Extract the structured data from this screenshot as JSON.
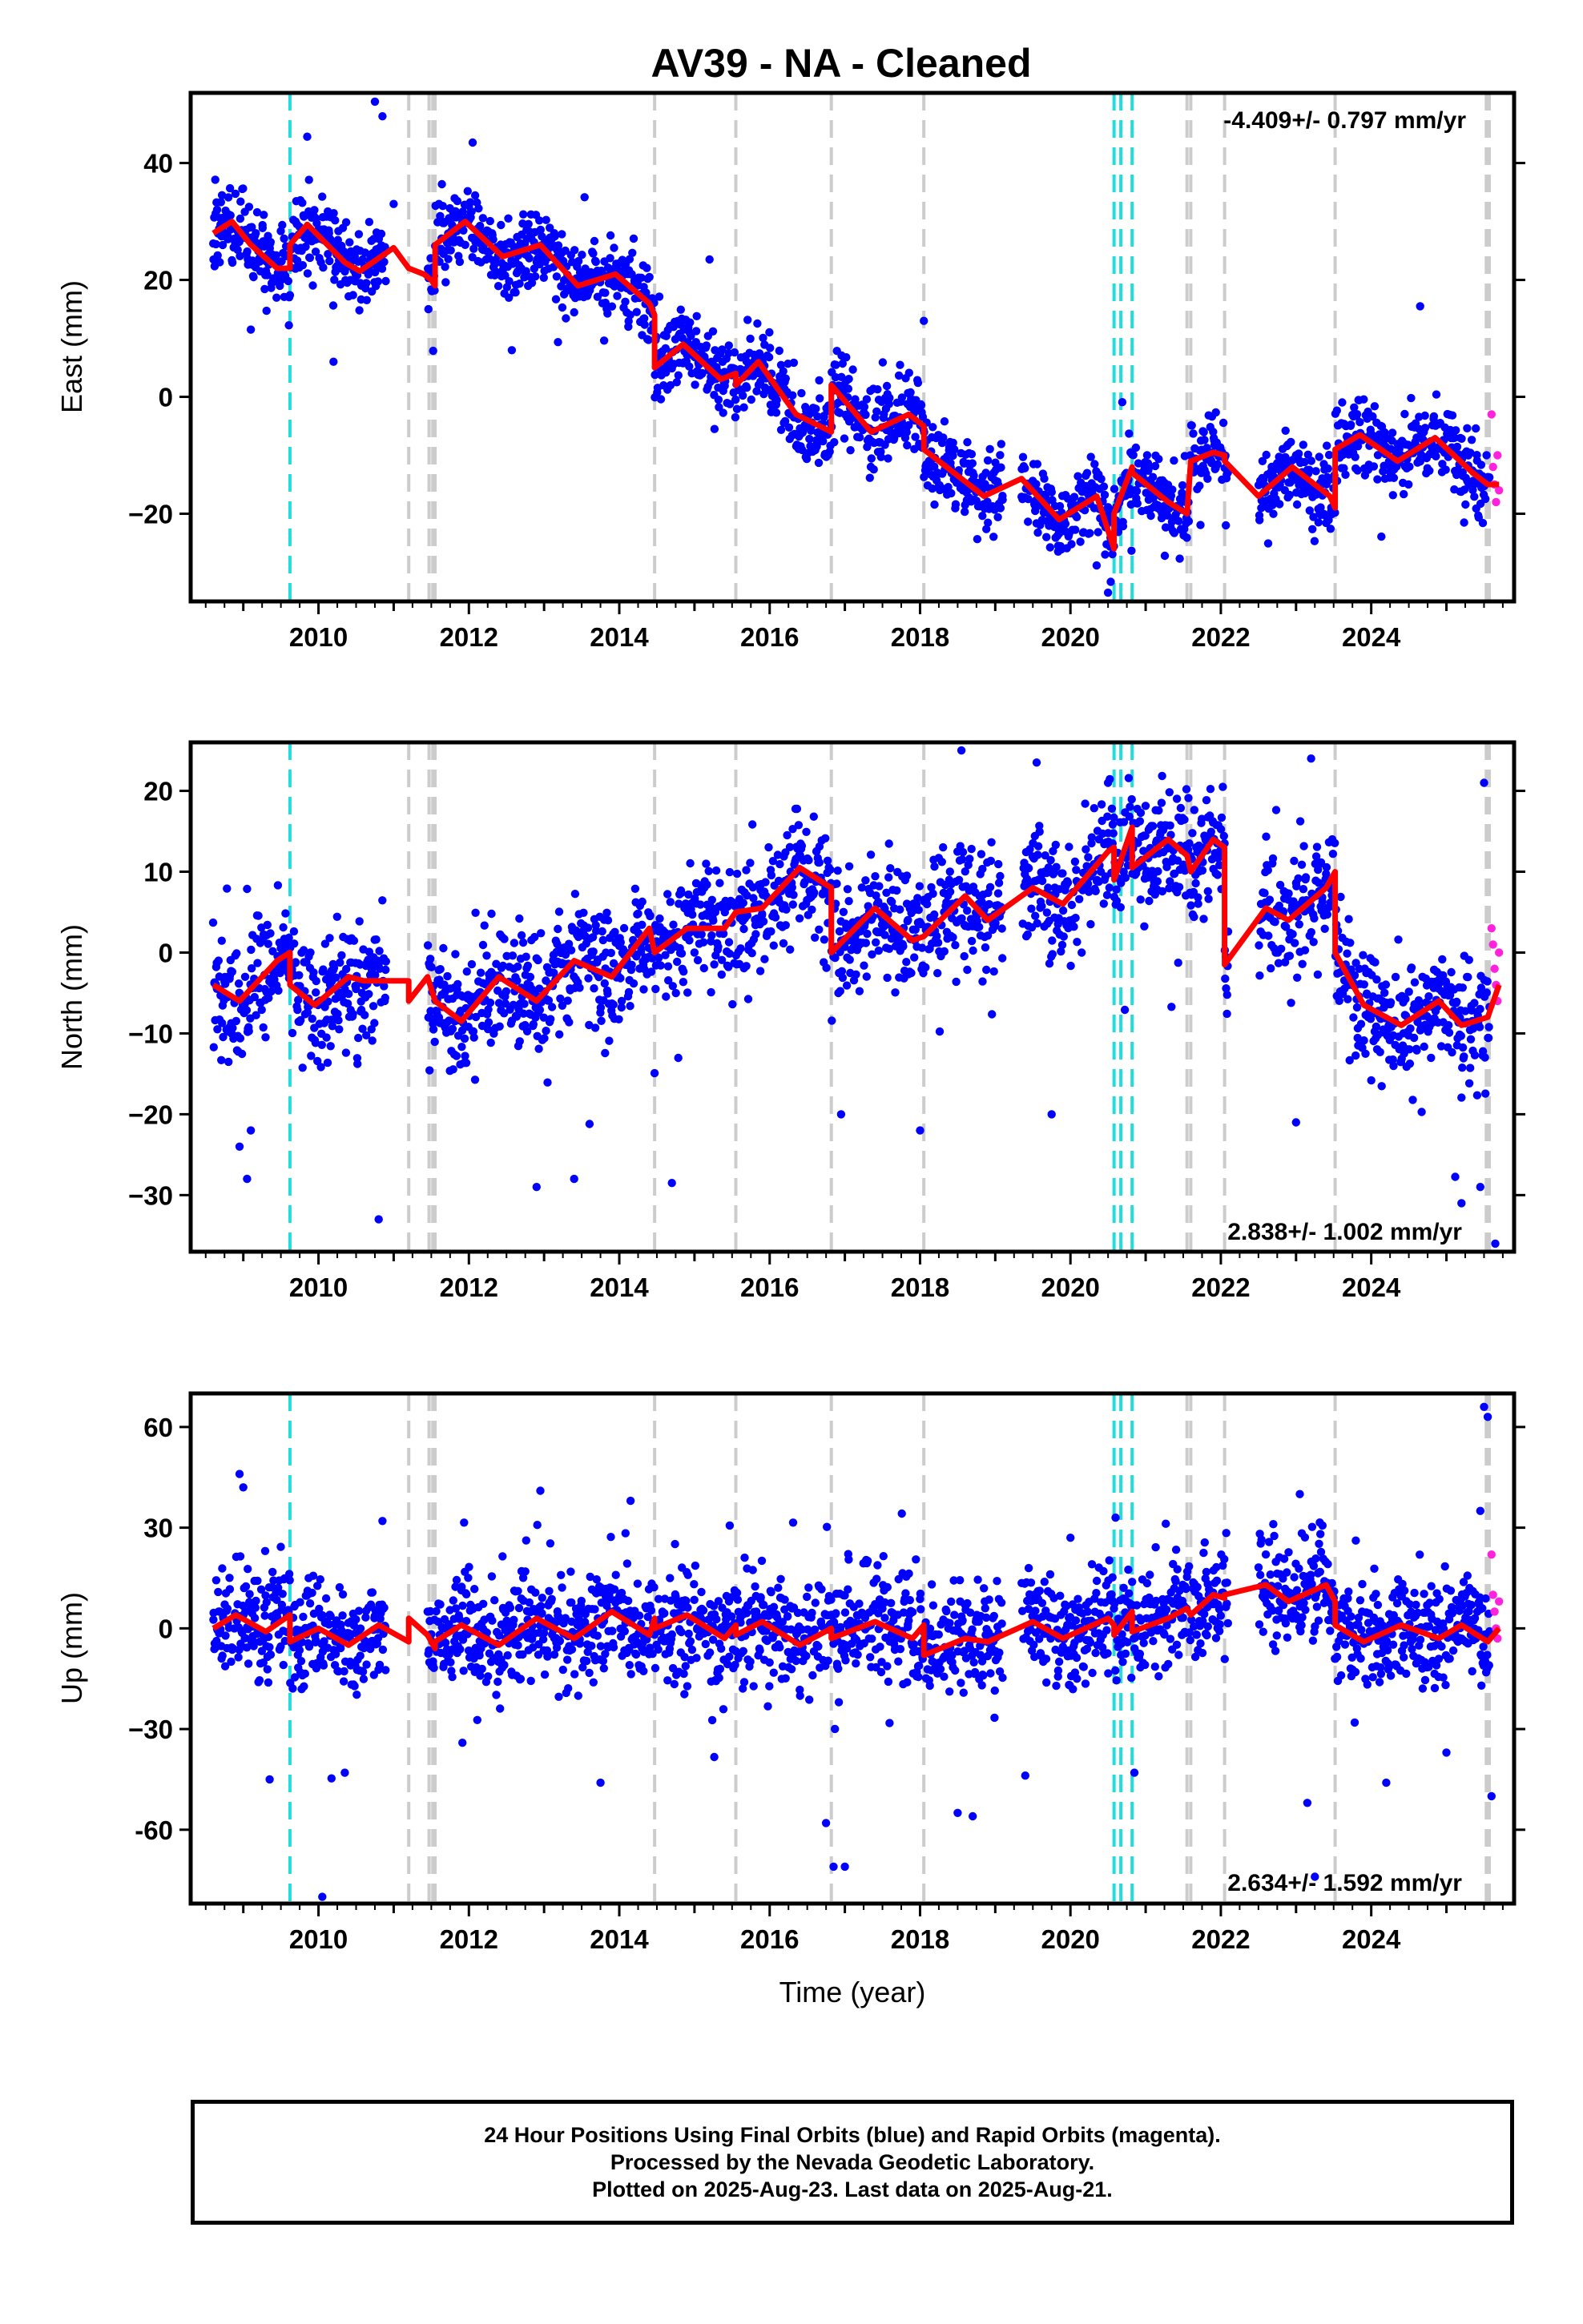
{
  "title": "AV39  - NA - Cleaned",
  "colors": {
    "final": "#0000ff",
    "rapid": "#ff22dd",
    "model": "#ff0000",
    "antenna_line": "#22dddd",
    "event_line": "#cccccc",
    "frame": "#000000"
  },
  "x_axis": {
    "label": "Time (year)",
    "range": [
      2008.3,
      2025.9
    ],
    "ticks": [
      2010,
      2012,
      2014,
      2016,
      2018,
      2020,
      2022,
      2024
    ],
    "tick_labels": [
      "2010",
      "2012",
      "2014",
      "2016",
      "2018",
      "2020",
      "2022",
      "2024"
    ],
    "minor_step": 0.25
  },
  "vertical_lines": {
    "antenna": [
      2009.62,
      2020.58,
      2020.67,
      2020.82
    ],
    "event": [
      2011.2,
      2011.47,
      2011.52,
      2011.55,
      2014.47,
      2015.55,
      2016.82,
      2018.05,
      2021.55,
      2021.6,
      2022.05,
      2023.52,
      2025.53,
      2025.57
    ]
  },
  "chart_data": [
    {
      "type": "scatter",
      "ylabel": "East (mm)",
      "ylim": [
        -35,
        52
      ],
      "yticks": [
        -20,
        0,
        20,
        40
      ],
      "ytick_labels": [
        "−20",
        "0",
        "20",
        "40"
      ],
      "rate_text": "-4.409+/- 0.797 mm/yr",
      "rate_position": "top-right",
      "series": [
        {
          "name": "Final Orbits",
          "style": "points",
          "noise": 3.2,
          "gaps": [
            [
              2010.9,
              2011.45
            ],
            [
              2019.1,
              2019.35
            ],
            [
              2022.1,
              2022.5
            ]
          ],
          "outliers": [
            [
              2009.85,
              44.5
            ],
            [
              2010.75,
              50.5
            ],
            [
              2010.85,
              48
            ],
            [
              2011.0,
              33
            ],
            [
              2012.05,
              43.5
            ],
            [
              2024.65,
              15.5
            ],
            [
              2020.5,
              -33.5
            ],
            [
              2018.05,
              13
            ],
            [
              2015.2,
              23.5
            ],
            [
              2009.1,
              11.5
            ],
            [
              2010.2,
              6
            ]
          ]
        },
        {
          "name": "Rapid Orbits",
          "style": "points",
          "x": [
            2025.6,
            2025.62,
            2025.64,
            2025.66,
            2025.68,
            2025.7
          ],
          "y": [
            -3,
            -12,
            -15,
            -18,
            -10,
            -16
          ]
        },
        {
          "name": "Model",
          "style": "line",
          "x": [
            2008.6,
            2008.85,
            2009.1,
            2009.45,
            2009.62,
            2009.62,
            2009.85,
            2010.35,
            2010.55,
            2011.0,
            2011.2,
            2011.2,
            2011.4,
            2011.5,
            2011.55,
            2011.55,
            2011.95,
            2012.45,
            2012.95,
            2013.45,
            2013.95,
            2014.4,
            2014.47,
            2014.47,
            2014.85,
            2015.35,
            2015.55,
            2015.55,
            2015.85,
            2016.35,
            2016.82,
            2016.82,
            2017.35,
            2017.85,
            2018.05,
            2018.05,
            2018.85,
            2019.35,
            2019.85,
            2020.35,
            2020.58,
            2020.58,
            2020.82,
            2020.82,
            2021.3,
            2021.55,
            2021.6,
            2021.9,
            2022.05,
            2022.05,
            2022.5,
            2022.95,
            2023.45,
            2023.52,
            2023.52,
            2023.85,
            2024.35,
            2024.85,
            2025.35,
            2025.55,
            2025.7
          ],
          "y": [
            28,
            30,
            26,
            22,
            22,
            26,
            29.5,
            23,
            21.5,
            25.5,
            22,
            22,
            21,
            20,
            19,
            26,
            30,
            24,
            26,
            19,
            21,
            16,
            14,
            5,
            9,
            3,
            4,
            2,
            6,
            -3,
            -6,
            2,
            -6,
            -3,
            -5,
            -9,
            -17,
            -14,
            -21,
            -17,
            -26,
            -20,
            -12,
            -13,
            -18,
            -20,
            -11,
            -9.5,
            -10,
            -11,
            -17,
            -12,
            -17,
            -19,
            -9,
            -6.5,
            -11,
            -7,
            -13,
            -15,
            -15
          ]
        }
      ]
    },
    {
      "type": "scatter",
      "ylabel": "North (mm)",
      "ylim": [
        -37,
        26
      ],
      "yticks": [
        -30,
        -20,
        -10,
        0,
        10,
        20
      ],
      "ytick_labels": [
        "−30",
        "−20",
        "−10",
        "0",
        "10",
        "20"
      ],
      "rate_text": "2.838+/- 1.002 mm/yr",
      "rate_position": "bottom-right",
      "series": [
        {
          "name": "Final Orbits",
          "style": "points",
          "noise": 3.5,
          "gaps": [
            [
              2010.9,
              2011.45
            ],
            [
              2019.1,
              2019.35
            ],
            [
              2022.1,
              2022.5
            ]
          ],
          "outliers": [
            [
              2009.05,
              -28
            ],
            [
              2008.95,
              -24
            ],
            [
              2009.1,
              -22
            ],
            [
              2010.8,
              -33
            ],
            [
              2012.9,
              -29
            ],
            [
              2013.4,
              -28
            ],
            [
              2014.7,
              -28.5
            ],
            [
              2018.55,
              25
            ],
            [
              2019.55,
              23.5
            ],
            [
              2020.5,
              21
            ],
            [
              2023.2,
              24
            ],
            [
              2025.5,
              21
            ],
            [
              2025.45,
              -29
            ],
            [
              2025.2,
              -31
            ],
            [
              2025.65,
              -36
            ],
            [
              2016.95,
              -20
            ],
            [
              2018.0,
              -22
            ],
            [
              2019.75,
              -20
            ],
            [
              2023.0,
              -21
            ]
          ]
        },
        {
          "name": "Rapid Orbits",
          "style": "points",
          "x": [
            2025.6,
            2025.62,
            2025.64,
            2025.66,
            2025.68,
            2025.7
          ],
          "y": [
            3,
            1,
            -2,
            -4,
            -6,
            0
          ]
        },
        {
          "name": "Model",
          "style": "line",
          "x": [
            2008.6,
            2008.95,
            2009.45,
            2009.62,
            2009.62,
            2009.95,
            2010.4,
            2010.6,
            2011.2,
            2011.2,
            2011.45,
            2011.55,
            2011.55,
            2011.9,
            2012.4,
            2012.9,
            2013.4,
            2013.9,
            2014.4,
            2014.47,
            2014.47,
            2014.9,
            2015.4,
            2015.55,
            2015.55,
            2015.9,
            2016.4,
            2016.82,
            2016.82,
            2017.4,
            2017.9,
            2018.05,
            2018.05,
            2018.6,
            2018.9,
            2019.5,
            2019.9,
            2020.5,
            2020.58,
            2020.58,
            2020.82,
            2020.82,
            2021.3,
            2021.55,
            2021.6,
            2021.9,
            2022.05,
            2022.05,
            2022.6,
            2022.9,
            2023.4,
            2023.52,
            2023.52,
            2023.9,
            2024.4,
            2024.9,
            2025.2,
            2025.55,
            2025.7
          ],
          "y": [
            -4,
            -6,
            -1,
            0,
            -4,
            -6.5,
            -3,
            -3.5,
            -3.5,
            -6,
            -3,
            -6,
            -6,
            -8.5,
            -3,
            -6,
            -1,
            -3,
            3,
            0,
            0,
            3,
            3,
            5,
            5,
            5.5,
            10.5,
            8,
            0,
            5.5,
            1.5,
            2,
            2,
            7,
            4,
            8,
            6,
            12.5,
            13,
            9,
            15.5,
            10.5,
            14,
            12,
            10,
            14,
            13,
            -1.5,
            5.5,
            4,
            8,
            10,
            0,
            -6.5,
            -9,
            -6,
            -9,
            -8,
            -4
          ]
        }
      ]
    },
    {
      "type": "scatter",
      "ylabel": "Up (mm)",
      "ylim": [
        -82,
        70
      ],
      "yticks": [
        -60,
        -30,
        0,
        30,
        60
      ],
      "ytick_labels": [
        "-60",
        "−30",
        "0",
        "30",
        "60"
      ],
      "rate_text": "2.634+/- 1.592 mm/yr",
      "rate_position": "bottom-right",
      "series": [
        {
          "name": "Final Orbits",
          "style": "points",
          "noise": 8,
          "gaps": [
            [
              2010.9,
              2011.45
            ],
            [
              2019.1,
              2019.35
            ],
            [
              2022.1,
              2022.5
            ]
          ],
          "outliers": [
            [
              2008.95,
              46
            ],
            [
              2009.0,
              42
            ],
            [
              2009.35,
              -45
            ],
            [
              2010.05,
              -80
            ],
            [
              2010.35,
              -43
            ],
            [
              2010.85,
              32
            ],
            [
              2012.95,
              41
            ],
            [
              2013.75,
              -46
            ],
            [
              2014.15,
              38
            ],
            [
              2016.75,
              -58
            ],
            [
              2016.85,
              -71
            ],
            [
              2017.0,
              -71
            ],
            [
              2018.5,
              -55
            ],
            [
              2018.7,
              -56
            ],
            [
              2020.6,
              33
            ],
            [
              2020.85,
              -43
            ],
            [
              2023.15,
              -52
            ],
            [
              2023.25,
              -74
            ],
            [
              2024.2,
              -46
            ],
            [
              2025.5,
              66
            ],
            [
              2025.55,
              63
            ],
            [
              2025.45,
              35
            ],
            [
              2025.6,
              -50
            ],
            [
              2025.0,
              -37
            ],
            [
              2020.0,
              27
            ],
            [
              2023.05,
              40
            ]
          ]
        },
        {
          "name": "Rapid Orbits",
          "style": "points",
          "x": [
            2025.6,
            2025.62,
            2025.64,
            2025.66,
            2025.68,
            2025.7
          ],
          "y": [
            22,
            10,
            5,
            0,
            -3,
            8
          ]
        },
        {
          "name": "Model",
          "style": "line",
          "x": [
            2008.6,
            2008.9,
            2009.3,
            2009.62,
            2009.62,
            2010.0,
            2010.4,
            2010.8,
            2011.2,
            2011.2,
            2011.45,
            2011.55,
            2011.55,
            2011.9,
            2012.4,
            2012.9,
            2013.4,
            2013.9,
            2014.4,
            2014.47,
            2014.47,
            2014.9,
            2015.4,
            2015.55,
            2015.55,
            2015.9,
            2016.4,
            2016.82,
            2016.82,
            2017.4,
            2017.9,
            2018.05,
            2018.05,
            2018.6,
            2018.9,
            2019.5,
            2019.9,
            2020.5,
            2020.58,
            2020.58,
            2020.82,
            2020.82,
            2021.3,
            2021.55,
            2021.6,
            2021.9,
            2022.05,
            2022.05,
            2022.6,
            2022.9,
            2023.4,
            2023.52,
            2023.52,
            2023.9,
            2024.4,
            2024.9,
            2025.2,
            2025.55,
            2025.7
          ],
          "y": [
            0,
            4,
            -1,
            4,
            -4,
            0,
            -5,
            1,
            -4,
            3,
            -2,
            -6,
            -4,
            1,
            -5,
            3,
            -3,
            5,
            -2,
            3,
            0,
            4,
            -3,
            1,
            -2,
            2,
            -5,
            0,
            -3,
            2,
            -3,
            1,
            -8,
            -3,
            -4,
            2,
            -3,
            3,
            1,
            -2,
            5,
            -1,
            3,
            6,
            4,
            10,
            9,
            10,
            13,
            8,
            13,
            8,
            1,
            -4,
            1,
            -3,
            1,
            -4,
            0
          ]
        }
      ]
    }
  ],
  "footer": {
    "line1": "24 Hour Positions Using Final Orbits (blue) and Rapid Orbits (magenta).",
    "line2": "Processed by the Nevada Geodetic Laboratory.",
    "line3": "Plotted on 2025-Aug-23. Last data on 2025-Aug-21."
  }
}
